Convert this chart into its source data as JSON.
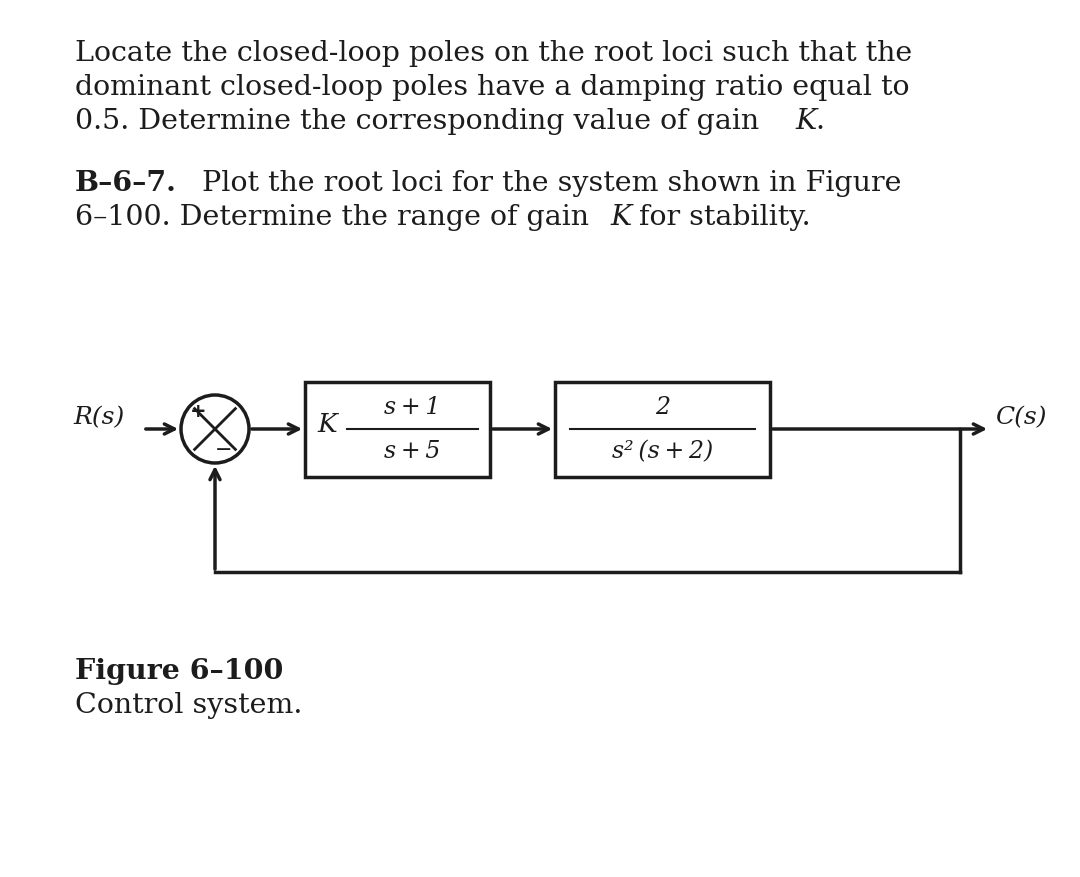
{
  "bg_color": "#ffffff",
  "text_color": "#1c1c1c",
  "line_color": "#1c1c1c",
  "para1_line1": "Locate the closed-loop poles on the root loci such that the",
  "para1_line2": "dominant closed-loop poles have a damping ratio equal to",
  "para1_line3": "0.5. Determine the corresponding value of gain   K.",
  "para2_bold": "B–6–7.",
  "para2_line1": " Plot the root loci for the system shown in Figure",
  "para2_line2": "6–100. Determine the range of gain K for stability.",
  "block1_K": "K",
  "block1_num": "s + 1",
  "block1_den": "s + 5",
  "block2_num": "2",
  "block2_den": "s² (s + 2)",
  "Rs_label": "R(s)",
  "Cs_label": "C(s)",
  "fig_cap_bold": "Figure 6–100",
  "fig_cap_normal": "Control system.",
  "fs_main": 20.5,
  "fs_block": 17,
  "fs_label": 18,
  "lw": 2.5
}
